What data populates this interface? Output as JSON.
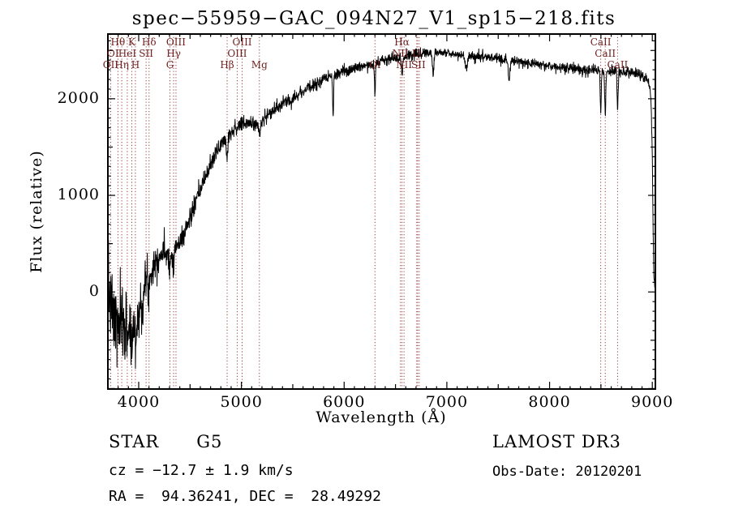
{
  "title": "spec−55959−GAC_094N27_V1_sp15−218.fits",
  "annotations": {
    "class_label": "STAR      G5",
    "survey": "LAMOST DR3",
    "cz": "cz = −12.7 ± 1.9 km/s",
    "obs_date": "Obs-Date: 20120201",
    "radec": "RA =  94.36241, DEC =  28.49292"
  },
  "chart_data": {
    "type": "line",
    "title": "spec−55959−GAC_094N27_V1_sp15−218.fits",
    "xlabel": "Wavelength (Å)",
    "ylabel": "Flux (relative)",
    "xlim": [
      3700,
      9030
    ],
    "ylim": [
      -1005,
      2670
    ],
    "x_ticks": [
      4000,
      5000,
      6000,
      7000,
      8000,
      9000
    ],
    "y_ticks": [
      0,
      1000,
      2000
    ],
    "grid": false,
    "legend": false,
    "line_color": "#000000",
    "marker_line_color": "#9a3b3b",
    "marker_label_color": "#6e1e1e",
    "line_wavelengths": [
      3727,
      3798,
      3835,
      3889,
      3933,
      3968,
      4072,
      4101,
      4304,
      4340,
      4363,
      4861,
      4959,
      5007,
      5175,
      6300,
      6548,
      6563,
      6583,
      6707,
      6716,
      6731,
      8498,
      8542,
      8662
    ],
    "spectral_lines": [
      {
        "label": "Hθ",
        "wavelength": 3798,
        "row": 0
      },
      {
        "label": "K",
        "wavelength": 3933,
        "row": 0
      },
      {
        "label": "Hδ",
        "wavelength": 4101,
        "row": 0
      },
      {
        "label": "OIII",
        "wavelength": 4363,
        "row": 0
      },
      {
        "label": "OIII",
        "wavelength": 5007,
        "row": 0
      },
      {
        "label": "Hα",
        "wavelength": 6563,
        "row": 0
      },
      {
        "label": "CaII",
        "wavelength": 8498,
        "row": 0
      },
      {
        "label": "OI",
        "wavelength": 3750,
        "row": 1
      },
      {
        "label": "HeI",
        "wavelength": 3889,
        "row": 1
      },
      {
        "label": "SII",
        "wavelength": 4072,
        "row": 1
      },
      {
        "label": "Hγ",
        "wavelength": 4340,
        "row": 1
      },
      {
        "label": "OIII",
        "wavelength": 4959,
        "row": 1
      },
      {
        "label": "NII",
        "wavelength": 6548,
        "row": 1
      },
      {
        "label": "Li",
        "wavelength": 6707,
        "row": 1
      },
      {
        "label": "CaII",
        "wavelength": 8542,
        "row": 1
      },
      {
        "label": "OII",
        "wavelength": 3727,
        "row": 2
      },
      {
        "label": "Hη",
        "wavelength": 3835,
        "row": 2
      },
      {
        "label": "H",
        "wavelength": 3968,
        "row": 2
      },
      {
        "label": "G",
        "wavelength": 4304,
        "row": 2
      },
      {
        "label": "Hβ",
        "wavelength": 4861,
        "row": 2
      },
      {
        "label": "Mg",
        "wavelength": 5175,
        "row": 2
      },
      {
        "label": "OI",
        "wavelength": 6300,
        "row": 2
      },
      {
        "label": "NII",
        "wavelength": 6583,
        "row": 2
      },
      {
        "label": "SII",
        "wavelength": 6723,
        "row": 2
      },
      {
        "label": "CaII",
        "wavelength": 8662,
        "row": 2
      }
    ],
    "control_points": [
      [
        3700,
        50
      ],
      [
        3730,
        -150
      ],
      [
        3760,
        -300
      ],
      [
        3800,
        -380
      ],
      [
        3850,
        -350
      ],
      [
        3900,
        -380
      ],
      [
        3950,
        -300
      ],
      [
        4000,
        -250
      ],
      [
        4030,
        -120
      ],
      [
        4060,
        50
      ],
      [
        4100,
        180
      ],
      [
        4150,
        300
      ],
      [
        4200,
        380
      ],
      [
        4260,
        420
      ],
      [
        4320,
        400
      ],
      [
        4380,
        480
      ],
      [
        4440,
        600
      ],
      [
        4500,
        760
      ],
      [
        4560,
        940
      ],
      [
        4620,
        1110
      ],
      [
        4680,
        1270
      ],
      [
        4740,
        1410
      ],
      [
        4800,
        1530
      ],
      [
        4860,
        1610
      ],
      [
        4920,
        1680
      ],
      [
        4980,
        1720
      ],
      [
        5040,
        1740
      ],
      [
        5100,
        1750
      ],
      [
        5160,
        1745
      ],
      [
        5220,
        1790
      ],
      [
        5280,
        1850
      ],
      [
        5340,
        1900
      ],
      [
        5400,
        1945
      ],
      [
        5460,
        1985
      ],
      [
        5520,
        2025
      ],
      [
        5580,
        2065
      ],
      [
        5640,
        2105
      ],
      [
        5700,
        2140
      ],
      [
        5760,
        2175
      ],
      [
        5820,
        2205
      ],
      [
        5880,
        2230
      ],
      [
        5940,
        2255
      ],
      [
        6000,
        2280
      ],
      [
        6080,
        2310
      ],
      [
        6160,
        2335
      ],
      [
        6240,
        2355
      ],
      [
        6320,
        2375
      ],
      [
        6400,
        2395
      ],
      [
        6480,
        2415
      ],
      [
        6560,
        2430
      ],
      [
        6640,
        2450
      ],
      [
        6720,
        2465
      ],
      [
        6800,
        2478
      ],
      [
        6880,
        2483
      ],
      [
        6960,
        2478
      ],
      [
        7040,
        2468
      ],
      [
        7120,
        2458
      ],
      [
        7200,
        2448
      ],
      [
        7300,
        2437
      ],
      [
        7400,
        2426
      ],
      [
        7500,
        2415
      ],
      [
        7600,
        2402
      ],
      [
        7700,
        2388
      ],
      [
        7800,
        2372
      ],
      [
        7900,
        2357
      ],
      [
        8000,
        2342
      ],
      [
        8100,
        2330
      ],
      [
        8200,
        2320
      ],
      [
        8300,
        2310
      ],
      [
        8400,
        2300
      ],
      [
        8500,
        2292
      ],
      [
        8600,
        2286
      ],
      [
        8700,
        2280
      ],
      [
        8800,
        2270
      ],
      [
        8900,
        2248
      ],
      [
        8950,
        2200
      ],
      [
        8985,
        2060
      ],
      [
        9000,
        1450
      ],
      [
        9008,
        650
      ],
      [
        9015,
        180
      ],
      [
        9022,
        60
      ]
    ],
    "absorption_features": [
      [
        3933,
        260,
        7
      ],
      [
        3968,
        260,
        7
      ],
      [
        4101,
        160,
        7
      ],
      [
        4304,
        120,
        9
      ],
      [
        4340,
        120,
        6
      ],
      [
        4861,
        200,
        7
      ],
      [
        5175,
        120,
        10
      ],
      [
        5893,
        380,
        5
      ],
      [
        6300,
        350,
        4
      ],
      [
        6563,
        190,
        6
      ],
      [
        6867,
        230,
        7
      ],
      [
        7190,
        140,
        10
      ],
      [
        7605,
        210,
        9
      ],
      [
        8498,
        430,
        5
      ],
      [
        8542,
        470,
        5
      ],
      [
        8662,
        430,
        5
      ]
    ],
    "noise_profile": [
      [
        3700,
        190
      ],
      [
        3800,
        210
      ],
      [
        3900,
        190
      ],
      [
        4000,
        150
      ],
      [
        4100,
        110
      ],
      [
        4200,
        85
      ],
      [
        4300,
        70
      ],
      [
        4400,
        60
      ],
      [
        4600,
        48
      ],
      [
        4800,
        42
      ],
      [
        5000,
        38
      ],
      [
        5400,
        33
      ],
      [
        5800,
        30
      ],
      [
        6200,
        28
      ],
      [
        6600,
        26
      ],
      [
        7000,
        24
      ],
      [
        7500,
        24
      ],
      [
        8000,
        25
      ],
      [
        8500,
        28
      ],
      [
        8800,
        30
      ],
      [
        9000,
        22
      ]
    ],
    "noise_seed": 7
  }
}
